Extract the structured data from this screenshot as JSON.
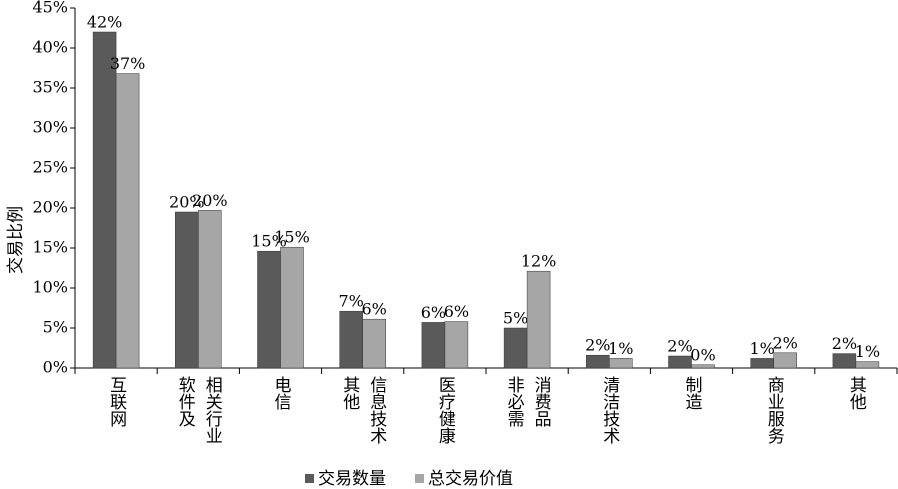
{
  "chart_data": {
    "type": "bar",
    "y_label": "交易比例",
    "categories": [
      [
        "互联网"
      ],
      [
        "软件及",
        "相关行业"
      ],
      [
        "电信"
      ],
      [
        "其他",
        "信息技术"
      ],
      [
        "医疗健康"
      ],
      [
        "非必需",
        "消费品"
      ],
      [
        "清洁技术"
      ],
      [
        "制造"
      ],
      [
        "商业服务"
      ],
      [
        "其他"
      ]
    ],
    "series": [
      {
        "name": "交易数量",
        "color": "#5a5a5a",
        "values": [
          42,
          19.5,
          14.6,
          7.1,
          5.7,
          5.0,
          1.6,
          1.5,
          1.2,
          1.8
        ],
        "value_labels": [
          "42%",
          "20%",
          "15%",
          "7%",
          "6%",
          "5%",
          "2%",
          "2%",
          "1%",
          "2%"
        ]
      },
      {
        "name": "总交易价值",
        "color": "#a6a6a6",
        "values": [
          36.8,
          19.7,
          15.1,
          6.1,
          5.8,
          12.1,
          1.2,
          0.4,
          1.9,
          0.8
        ],
        "value_labels": [
          "37%",
          "20%",
          "15%",
          "6%",
          "6%",
          "12%",
          "1%",
          "0%",
          "2%",
          "1%"
        ]
      }
    ],
    "ylim": [
      0,
      45
    ],
    "yticks": [
      {
        "value": 0,
        "label": "0%"
      },
      {
        "value": 5,
        "label": "5%"
      },
      {
        "value": 10,
        "label": "10%"
      },
      {
        "value": 15,
        "label": "15%"
      },
      {
        "value": 20,
        "label": "20%"
      },
      {
        "value": 25,
        "label": "25%"
      },
      {
        "value": 30,
        "label": "30%"
      },
      {
        "value": 35,
        "label": "35%"
      },
      {
        "value": 40,
        "label": "40%"
      },
      {
        "value": 45,
        "label": "45%"
      }
    ],
    "grid": false,
    "legend": "bottom"
  }
}
